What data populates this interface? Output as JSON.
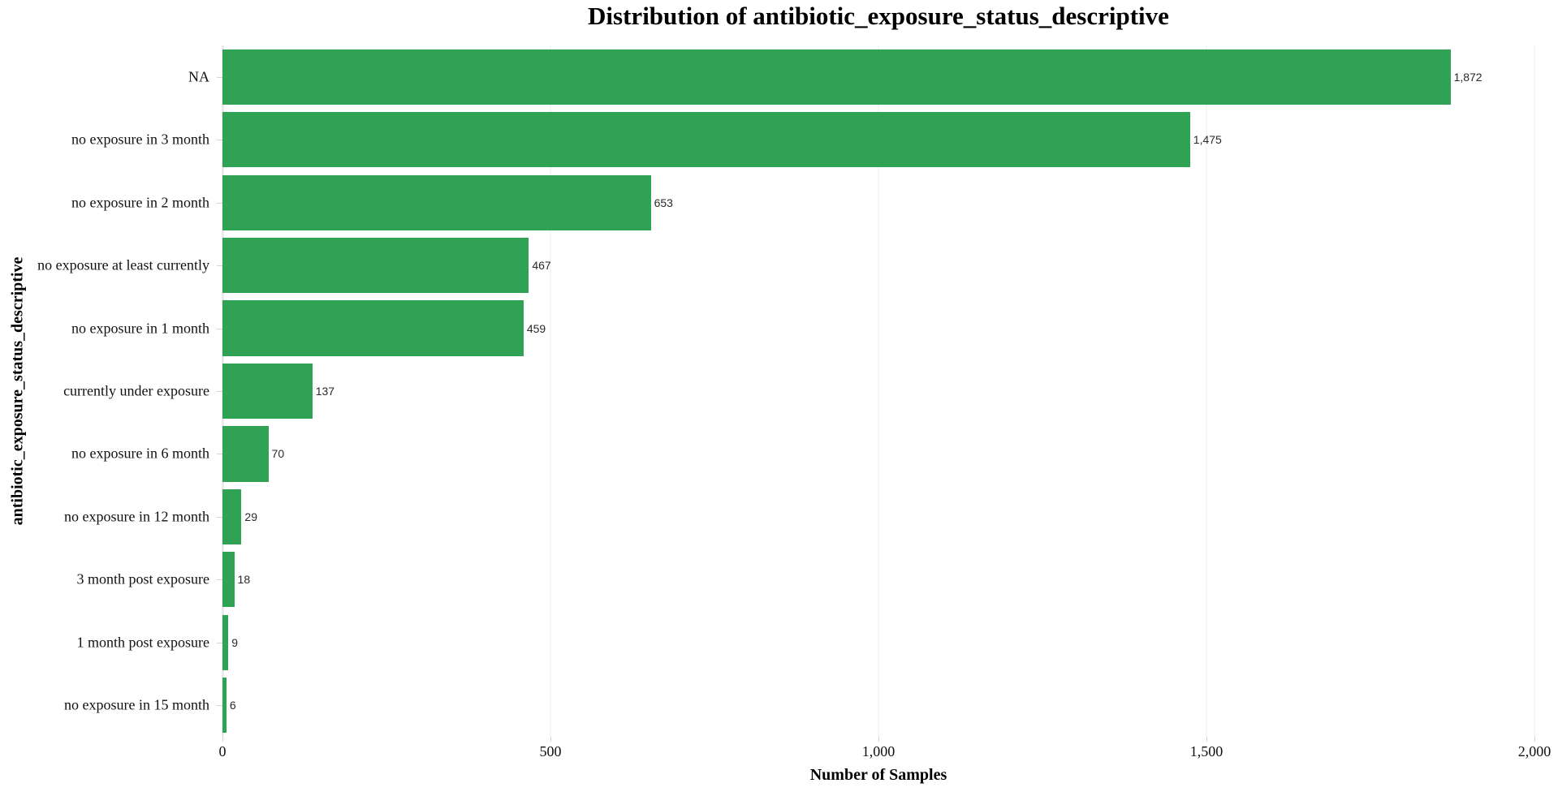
{
  "chart": {
    "title": "Distribution of antibiotic_exposure_status_descriptive",
    "xlabel": "Number of Samples",
    "ylabel": "antibiotic_exposure_status_descriptive"
  },
  "chart_data": {
    "type": "bar",
    "orientation": "horizontal",
    "title": "Distribution of antibiotic_exposure_status_descriptive",
    "xlabel": "Number of Samples",
    "ylabel": "antibiotic_exposure_status_descriptive",
    "categories": [
      "NA",
      "no exposure in 3 month",
      "no exposure in 2 month",
      "no exposure at least currently",
      "no exposure in 1 month",
      "currently under exposure",
      "no exposure in 6 month",
      "no exposure in 12 month",
      "3 month post exposure",
      "1 month post exposure",
      "no exposure in 15 month"
    ],
    "values": [
      1872,
      1475,
      653,
      467,
      459,
      137,
      70,
      29,
      18,
      9,
      6
    ],
    "value_labels": [
      "1,872",
      "1,475",
      "653",
      "467",
      "459",
      "137",
      "70",
      "29",
      "18",
      "9",
      "6"
    ],
    "xlim": [
      0,
      2000
    ],
    "xticks": {
      "values": [
        0,
        500,
        1000,
        1500,
        2000
      ],
      "labels": [
        "0",
        "500",
        "1,000",
        "1,500",
        "2,000"
      ]
    },
    "grid": "vertical-only",
    "legend": "none",
    "colors": {
      "bar": "#2fa254",
      "gridline": "#ececec",
      "axis_line": "#e2e2e2",
      "tick": "#d4d4d4"
    }
  }
}
